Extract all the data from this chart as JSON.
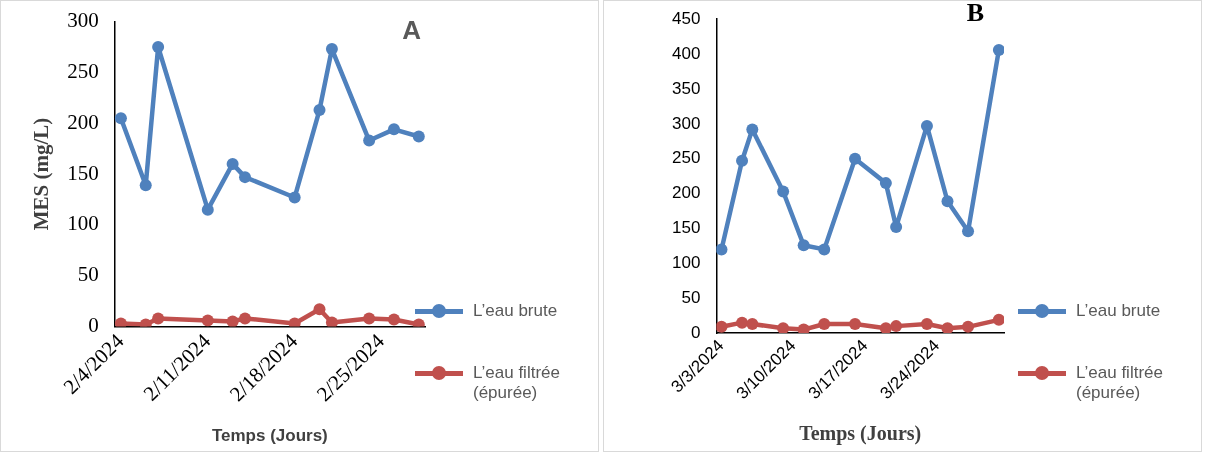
{
  "chart_data": [
    {
      "type": "line",
      "xlabel": "Temps (Jours)",
      "ylabel": "MES (mg/L)",
      "annotations": [
        "A"
      ],
      "legend": "right",
      "marker": "circle",
      "line_style": "solid",
      "x": [
        "2024-02-04",
        "2024-02-06",
        "2024-02-07",
        "2024-02-11",
        "2024-02-13",
        "2024-02-14",
        "2024-02-18",
        "2024-02-20",
        "2024-02-21",
        "2024-02-24",
        "2024-02-26",
        "2024-02-28"
      ],
      "series": [
        {
          "name": "L’eau brute",
          "color": "#4f81bd",
          "values": [
            205,
            139,
            275,
            115,
            160,
            147,
            127,
            213,
            273,
            183,
            194,
            187
          ]
        },
        {
          "name": "L’eau filtrée (épurée)",
          "color": "#c0504d",
          "values": [
            3,
            2,
            8,
            6,
            5,
            8,
            3,
            17,
            4,
            8,
            7,
            2
          ]
        }
      ],
      "xlim": [
        "2024-02-03T12:00",
        "2024-02-28T12:00"
      ],
      "xticks": [
        {
          "value": "2024-02-04",
          "label": "2/4/2024"
        },
        {
          "value": "2024-02-11",
          "label": "2/11/2024"
        },
        {
          "value": "2024-02-18",
          "label": "2/18/2024"
        },
        {
          "value": "2024-02-25",
          "label": "2/25/2024"
        }
      ],
      "ylim": [
        0,
        300
      ],
      "yticks": [
        0,
        50,
        100,
        150,
        200,
        250,
        300
      ]
    },
    {
      "type": "line",
      "xlabel": "Temps (Jours)",
      "annotations": [
        "B"
      ],
      "legend": "right",
      "marker": "circle",
      "line_style": "solid",
      "x": [
        "2024-03-03",
        "2024-03-05",
        "2024-03-06",
        "2024-03-09",
        "2024-03-11",
        "2024-03-13",
        "2024-03-16",
        "2024-03-19",
        "2024-03-20",
        "2024-03-23",
        "2024-03-25",
        "2024-03-27",
        "2024-03-30"
      ],
      "series": [
        {
          "name": "L’eau brute",
          "color": "#4f81bd",
          "values": [
            120,
            247,
            292,
            203,
            126,
            120,
            250,
            215,
            152,
            297,
            189,
            146,
            406
          ]
        },
        {
          "name": "L’eau filtrée (épurée)",
          "color": "#c0504d",
          "values": [
            9,
            15,
            13,
            7,
            5,
            13,
            13,
            7,
            10,
            13,
            7,
            9,
            19
          ]
        }
      ],
      "xlim": [
        "2024-03-02T12:00",
        "2024-03-30T12:00"
      ],
      "xticks": [
        {
          "value": "2024-03-03",
          "label": "3/3/2024"
        },
        {
          "value": "2024-03-10",
          "label": "3/10/2024"
        },
        {
          "value": "2024-03-17",
          "label": "3/17/2024"
        },
        {
          "value": "2024-03-24",
          "label": "3/24/2024"
        }
      ],
      "ylim": [
        0,
        450
      ],
      "yticks": [
        0,
        50,
        100,
        150,
        200,
        250,
        300,
        350,
        400,
        450
      ]
    }
  ]
}
